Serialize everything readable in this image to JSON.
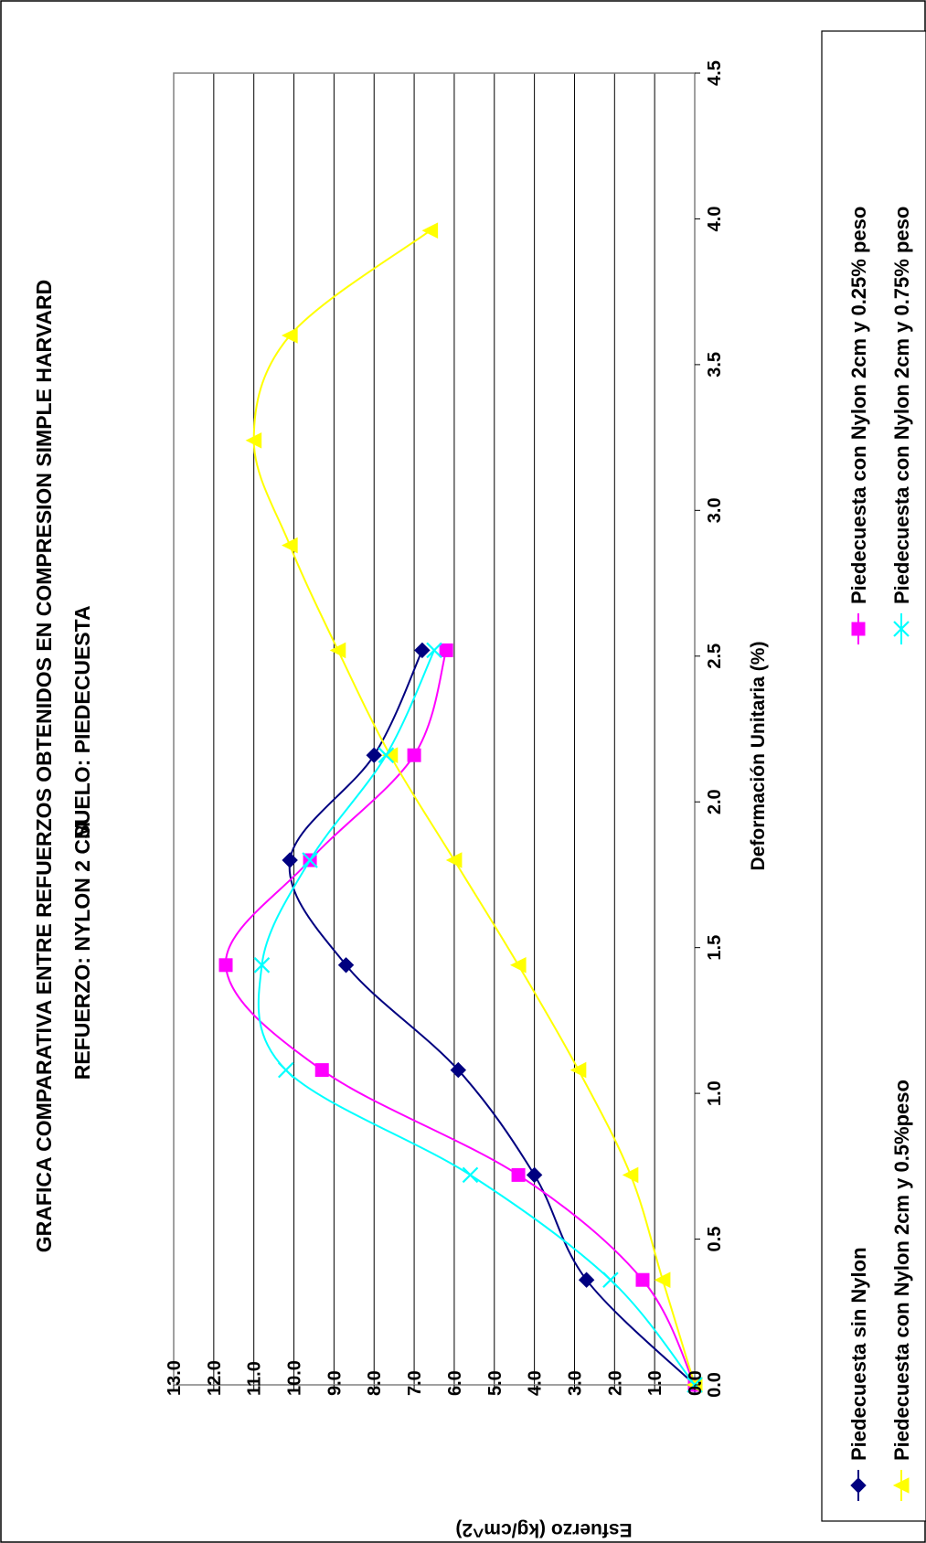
{
  "chart_data": {
    "type": "line",
    "orientation": "rotated 90 degrees counter-clockwise",
    "title_lines": [
      "GRAFICA COMPARATIVA ENTRE REFUERZOS OBTENIDOS EN COMPRESION SIMPLE HARVARD",
      "SUELO: PIEDECUESTA",
      "REFUERZO: NYLON 2 CM"
    ],
    "xlabel": "Deformación Unitaria (%)",
    "ylabel": "Esfuerzo (kg/cm^2)",
    "xlim": [
      0,
      4.5
    ],
    "ylim": [
      0,
      13
    ],
    "x_ticks": [
      "0.0",
      "0.5",
      "1.0",
      "1.5",
      "2.0",
      "2.5",
      "3.0",
      "3.5",
      "4.0",
      "4.5"
    ],
    "y_ticks": [
      "0.0",
      "1.0",
      "2.0",
      "3.0",
      "4.0",
      "5.0",
      "6.0",
      "7.0",
      "8.0",
      "9.0",
      "10.0",
      "11.0",
      "12.0",
      "13.0"
    ],
    "grid": "horizontal lines at each y tick",
    "legend_position": "right",
    "series": [
      {
        "name": "Piedecuesta sin Nylon",
        "color": "#000080",
        "marker": "diamond",
        "x": [
          0.0,
          0.36,
          0.72,
          1.08,
          1.44,
          1.8,
          2.16,
          2.52
        ],
        "y": [
          0.0,
          2.7,
          4.0,
          5.9,
          8.7,
          10.1,
          8.0,
          6.8
        ]
      },
      {
        "name": "Piedecuesta con Nylon 2cm y 0.25% peso",
        "color": "#ff00ff",
        "marker": "square",
        "x": [
          0.0,
          0.36,
          0.72,
          1.08,
          1.44,
          1.8,
          2.16,
          2.52
        ],
        "y": [
          0.0,
          1.3,
          4.4,
          9.3,
          11.7,
          9.6,
          7.0,
          6.2
        ]
      },
      {
        "name": "Piedecuesta con Nylon 2cm y 0.5%peso",
        "color": "#ffff00",
        "marker": "triangle",
        "x": [
          0.0,
          0.36,
          0.72,
          1.08,
          1.44,
          1.8,
          2.16,
          2.52,
          2.88,
          3.24,
          3.6,
          3.96
        ],
        "y": [
          0.0,
          0.8,
          1.6,
          2.9,
          4.4,
          6.0,
          7.6,
          8.9,
          10.1,
          11.0,
          10.1,
          6.6
        ]
      },
      {
        "name": "Piedecuesta con Nylon 2cm y 0.75% peso",
        "color": "#00ffff",
        "marker": "x",
        "x": [
          0.0,
          0.36,
          0.72,
          1.08,
          1.44,
          1.8,
          2.16,
          2.52
        ],
        "y": [
          0.0,
          2.1,
          5.6,
          10.2,
          10.8,
          9.6,
          7.7,
          6.5
        ]
      }
    ]
  }
}
